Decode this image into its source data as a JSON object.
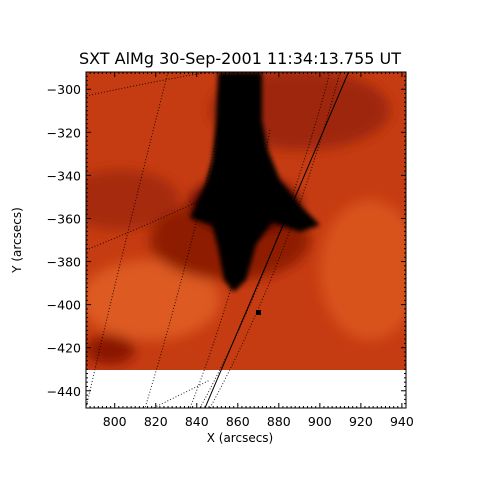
{
  "chart_data": {
    "type": "heatmap",
    "title": "SXT AlMg 30-Sep-2001 11:34:13.755 UT",
    "xlabel": "X (arcsecs)",
    "ylabel": "Y (arcsecs)",
    "xlim": [
      786,
      942
    ],
    "ylim": [
      -448,
      -292
    ],
    "xticks": [
      "800",
      "820",
      "840",
      "860",
      "880",
      "900",
      "920",
      "940"
    ],
    "yticks": [
      "-300",
      "-320",
      "-340",
      "-360",
      "-380",
      "-400",
      "-420",
      "-440"
    ],
    "colormap": [
      "#000000",
      "#7a0c00",
      "#c23d12",
      "#e25a22"
    ],
    "data_extent": {
      "x": [
        786,
        940
      ],
      "y": [
        -432,
        -292
      ]
    },
    "limb_line": {
      "x": [
        844,
        914
      ],
      "y": [
        -448,
        -292
      ]
    },
    "grid": "dotted heliographic grid"
  }
}
